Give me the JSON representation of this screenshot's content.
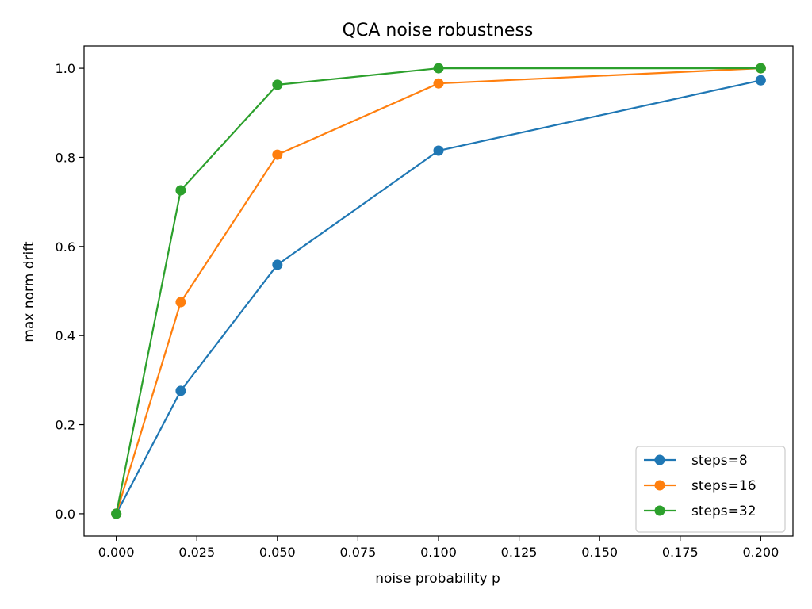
{
  "chart_data": {
    "type": "line",
    "title": "QCA noise robustness",
    "xlabel": "noise probability p",
    "ylabel": "max norm drift",
    "xlim": [
      -0.01,
      0.21
    ],
    "ylim": [
      -0.05,
      1.05
    ],
    "x_ticks": [
      "0.000",
      "0.025",
      "0.050",
      "0.075",
      "0.100",
      "0.125",
      "0.150",
      "0.175",
      "0.200"
    ],
    "y_ticks": [
      "0.0",
      "0.2",
      "0.4",
      "0.6",
      "0.8",
      "1.0"
    ],
    "grid": false,
    "legend_position": "lower-right",
    "marker": "circle",
    "x": [
      0.0,
      0.02,
      0.05,
      0.1,
      0.2
    ],
    "series": [
      {
        "name": "steps=8",
        "color": "#1f77b4",
        "values": [
          0.0,
          0.276,
          0.559,
          0.815,
          0.973
        ]
      },
      {
        "name": "steps=16",
        "color": "#ff7f0e",
        "values": [
          0.0,
          0.475,
          0.806,
          0.966,
          1.0
        ]
      },
      {
        "name": "steps=32",
        "color": "#2ca02c",
        "values": [
          0.0,
          0.726,
          0.963,
          1.0,
          1.0
        ]
      }
    ]
  }
}
